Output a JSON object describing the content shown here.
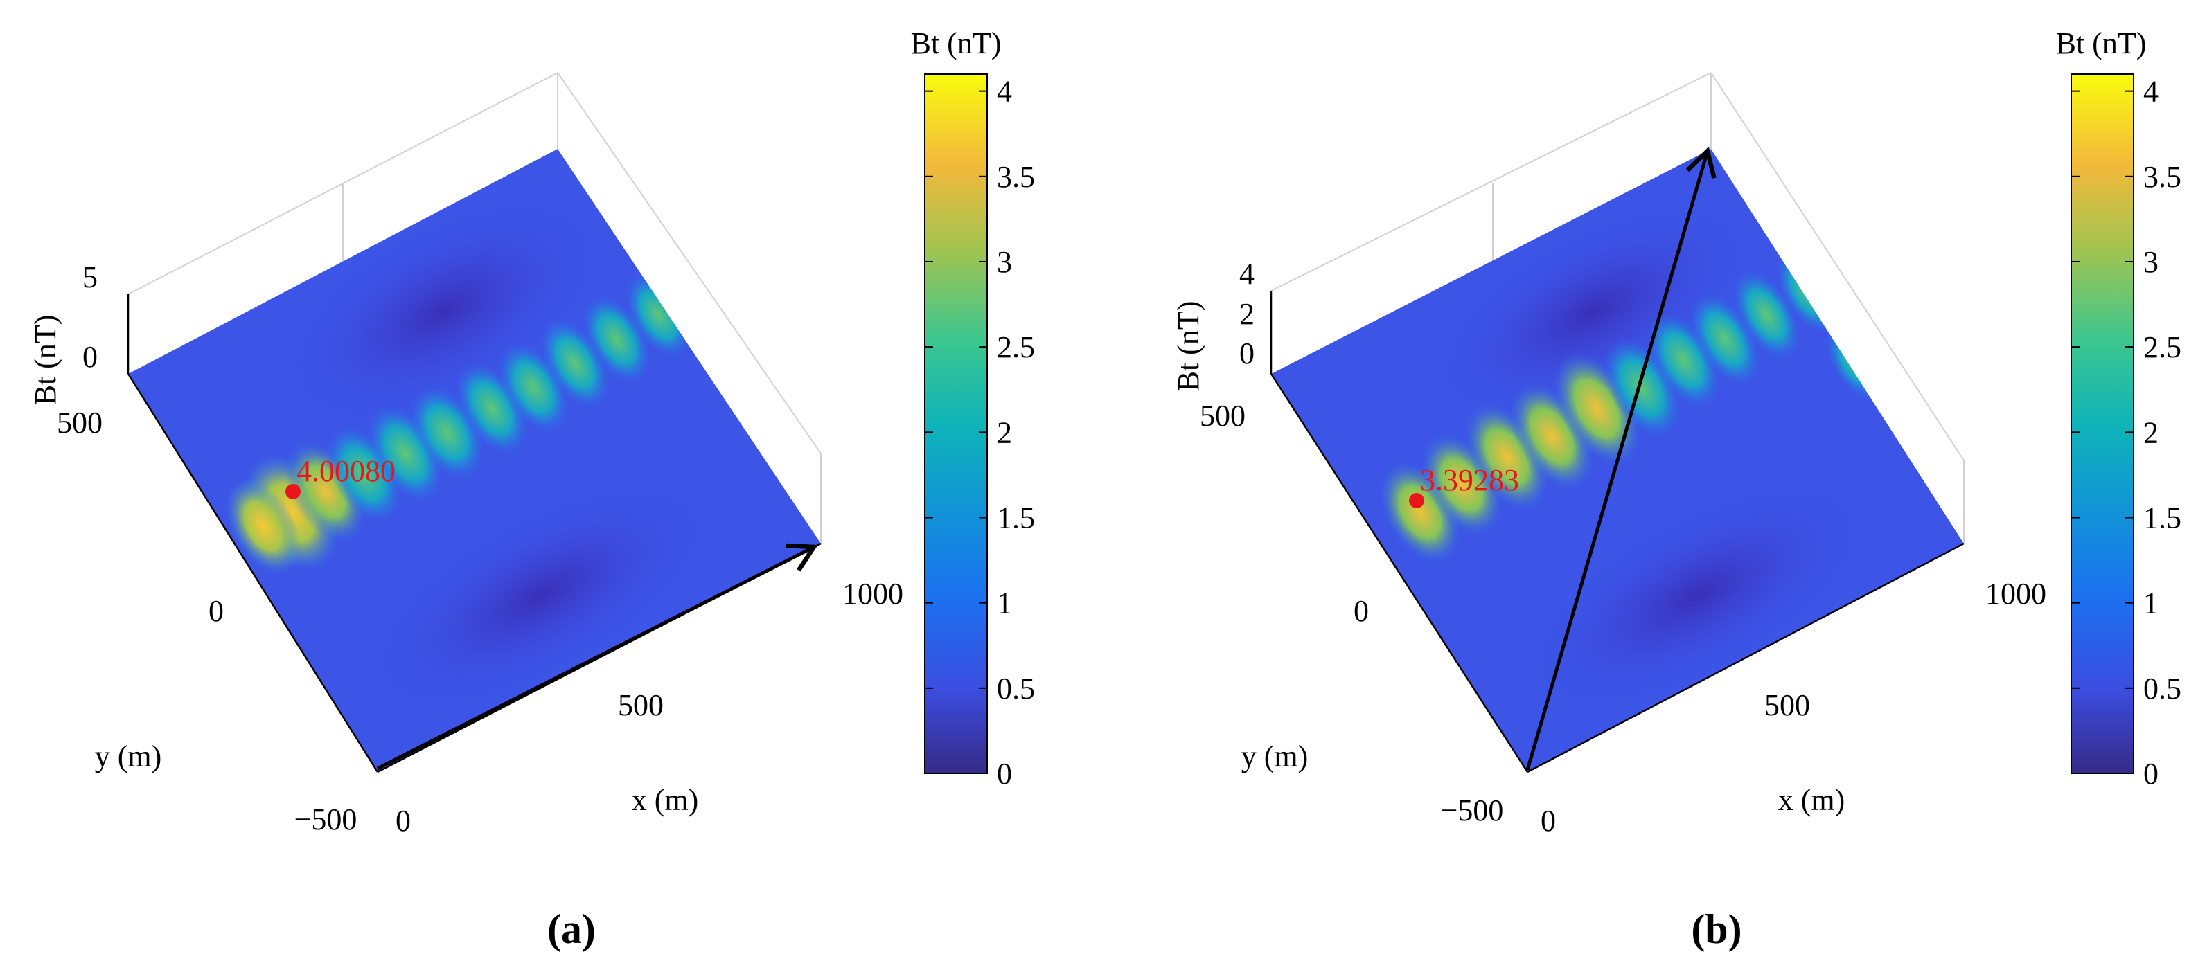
{
  "figure": {
    "panels": [
      {
        "caption": "(a)",
        "colorbar": {
          "title": "Bt (nT)",
          "min": 0,
          "max": 4.1,
          "ticks": [
            "0",
            "0.5",
            "1",
            "1.5",
            "2",
            "2.5",
            "3",
            "3.5",
            "4"
          ]
        },
        "axes": {
          "xlabel": "x (m)",
          "xticks": [
            "0",
            "500",
            "1000"
          ],
          "ylabel": "y (m)",
          "yticks": [
            "−500",
            "0",
            "500"
          ],
          "zlabel": "Bt (nT)",
          "zticks": [
            "0",
            "5"
          ]
        },
        "annotation": {
          "label": "4.00080",
          "color": "#e8161b"
        },
        "arrow": {
          "direction": "along x-axis"
        }
      },
      {
        "caption": "(b)",
        "colorbar": {
          "title": "Bt (nT)",
          "min": 0,
          "max": 4.1,
          "ticks": [
            "0",
            "0.5",
            "1",
            "1.5",
            "2",
            "2.5",
            "3",
            "3.5",
            "4"
          ]
        },
        "axes": {
          "xlabel": "x (m)",
          "xticks": [
            "0",
            "500",
            "1000"
          ],
          "ylabel": "y (m)",
          "yticks": [
            "−500",
            "0",
            "500"
          ],
          "zlabel": "Bt (nT)",
          "zticks": [
            "0",
            "2",
            "4"
          ]
        },
        "annotation": {
          "label": "3.39283",
          "color": "#e8161b"
        },
        "arrow": {
          "direction": "diagonal"
        }
      }
    ]
  },
  "chart_data": [
    {
      "type": "surface",
      "title": "",
      "xlabel": "x (m)",
      "ylabel": "y (m)",
      "zlabel": "Bt (nT)",
      "xlim": [
        0,
        1000
      ],
      "ylim": [
        -500,
        500
      ],
      "zlim": [
        0,
        5
      ],
      "clim": [
        0,
        4.1
      ],
      "colormap": "parula",
      "peak": {
        "label": "4.00080",
        "value": 4.0008
      },
      "caption": "(a)"
    },
    {
      "type": "surface",
      "title": "",
      "xlabel": "x (m)",
      "ylabel": "y (m)",
      "zlabel": "Bt (nT)",
      "xlim": [
        0,
        1000
      ],
      "ylim": [
        -500,
        500
      ],
      "zlim": [
        0,
        4
      ],
      "clim": [
        0,
        4.1
      ],
      "colormap": "parula",
      "peak": {
        "label": "3.39283",
        "value": 3.39283
      },
      "caption": "(b)"
    }
  ]
}
